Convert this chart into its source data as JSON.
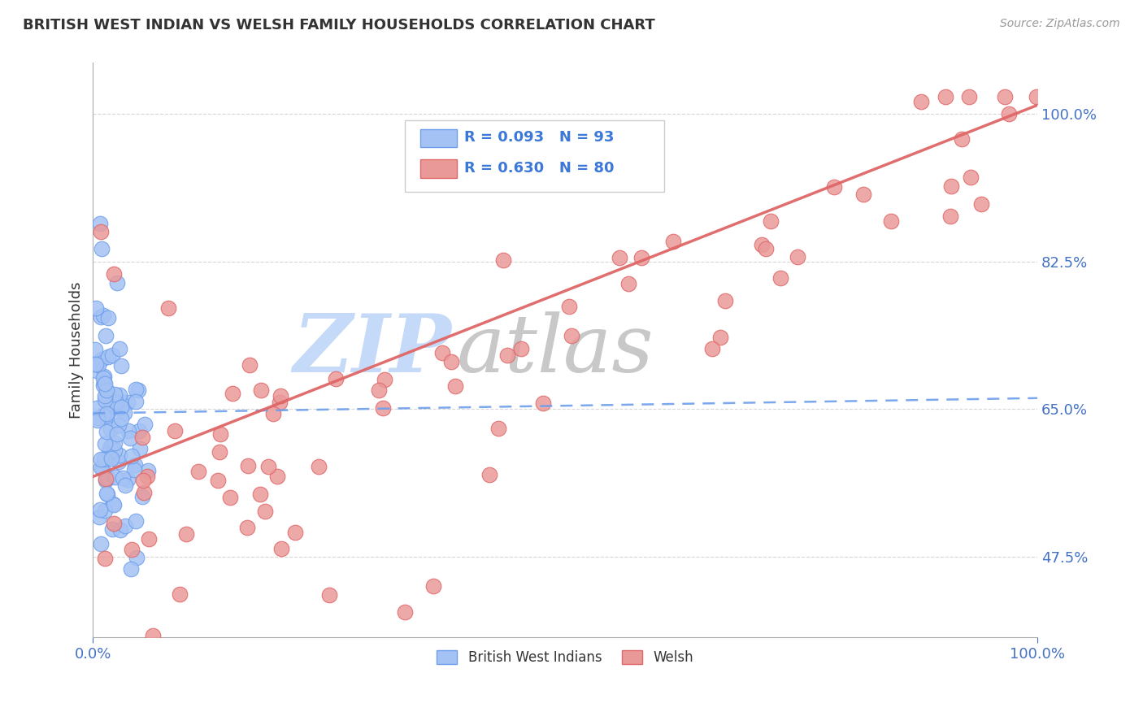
{
  "title": "BRITISH WEST INDIAN VS WELSH FAMILY HOUSEHOLDS CORRELATION CHART",
  "source": "Source: ZipAtlas.com",
  "ylabel": "Family Households",
  "xmin": 0.0,
  "xmax": 1.0,
  "ymin": 0.38,
  "ymax": 1.06,
  "yticks": [
    0.475,
    0.65,
    0.825,
    1.0
  ],
  "ytick_labels": [
    "47.5%",
    "65.0%",
    "82.5%",
    "100.0%"
  ],
  "xtick_labels": [
    "0.0%",
    "100.0%"
  ],
  "blue_R": 0.093,
  "blue_N": 93,
  "pink_R": 0.63,
  "pink_N": 80,
  "blue_scatter_color": "#a4c2f4",
  "blue_edge_color": "#6d9eeb",
  "pink_scatter_color": "#ea9999",
  "pink_edge_color": "#e06666",
  "blue_line_color": "#6d9eeb",
  "pink_line_color": "#e06666",
  "legend_blue_label": "British West Indians",
  "legend_pink_label": "Welsh",
  "title_color": "#333333",
  "source_color": "#999999",
  "ylabel_color": "#333333",
  "tick_color": "#4472c4",
  "grid_color": "#cccccc",
  "watermark_zip_color": "#c5d9f8",
  "watermark_atlas_color": "#c8c8c8",
  "bg_color": "#ffffff",
  "legend_box_color": "#f3f3f3",
  "legend_border_color": "#cccccc",
  "legend_text_color": "#3c78d8",
  "legend_N_color": "#cc0000"
}
